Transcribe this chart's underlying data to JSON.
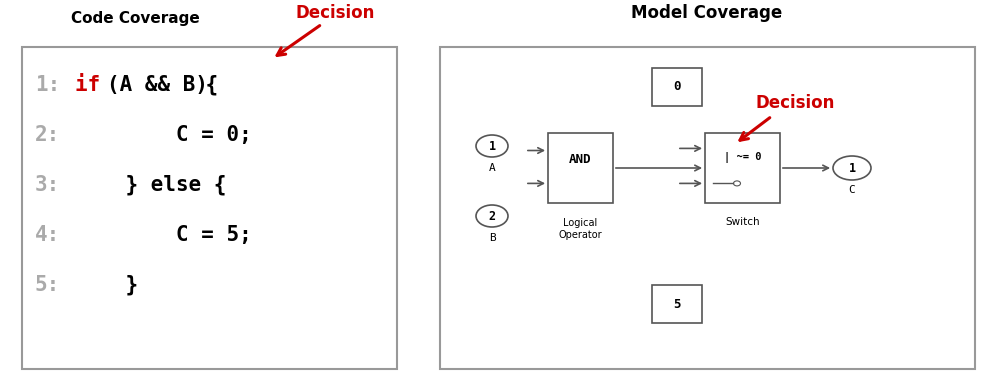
{
  "bg_color": "#ffffff",
  "left_panel_title": "Code Coverage",
  "right_panel_title": "Model Coverage",
  "decision_label": "Decision",
  "decision_color": "#cc0000",
  "num_color": "#aaaaaa",
  "code_color": "#000000",
  "code_red_color": "#cc0000",
  "panel_edge_color": "#999999",
  "wire_color": "#555555",
  "fig_w": 9.93,
  "fig_h": 3.81
}
